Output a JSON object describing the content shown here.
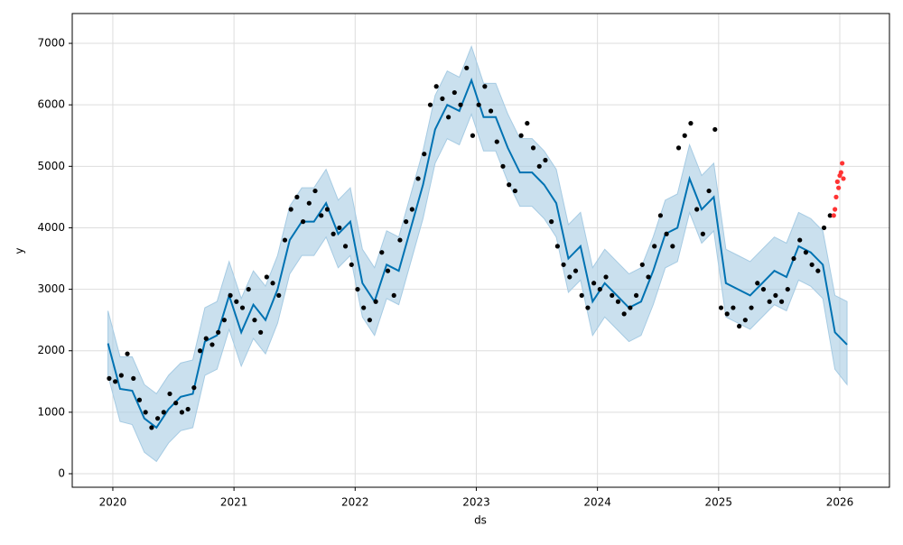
{
  "chart_data": {
    "type": "forecast",
    "x_label": "ds",
    "y_label": "y",
    "xlim": [
      2019.665,
      2026.41
    ],
    "ylim": [
      -220,
      7485
    ],
    "xticks": [
      2020,
      2021,
      2022,
      2023,
      2024,
      2025,
      2026
    ],
    "yticks": [
      0,
      1000,
      2000,
      3000,
      4000,
      5000,
      6000,
      7000
    ],
    "grid": true,
    "forecast": {
      "color": "#0072b2",
      "band_color": "#a6cbe3",
      "x": [
        2019.96,
        2020.06,
        2020.16,
        2020.26,
        2020.36,
        2020.46,
        2020.56,
        2020.66,
        2020.76,
        2020.86,
        2020.96,
        2021.06,
        2021.16,
        2021.26,
        2021.36,
        2021.46,
        2021.56,
        2021.66,
        2021.76,
        2021.86,
        2021.96,
        2022.06,
        2022.16,
        2022.26,
        2022.36,
        2022.46,
        2022.56,
        2022.66,
        2022.76,
        2022.86,
        2022.96,
        2023.06,
        2023.16,
        2023.26,
        2023.36,
        2023.46,
        2023.56,
        2023.66,
        2023.76,
        2023.86,
        2023.96,
        2024.06,
        2024.16,
        2024.26,
        2024.36,
        2024.46,
        2024.56,
        2024.66,
        2024.76,
        2024.86,
        2024.96,
        2025.06,
        2025.16,
        2025.26,
        2025.36,
        2025.46,
        2025.56,
        2025.66,
        2025.76,
        2025.86,
        2025.96,
        2026.06
      ],
      "values": [
        2120,
        1380,
        1350,
        900,
        750,
        1050,
        1250,
        1300,
        2150,
        2250,
        2900,
        2300,
        2750,
        2500,
        3000,
        3800,
        4100,
        4100,
        4400,
        3900,
        4100,
        3100,
        2800,
        3400,
        3300,
        4000,
        4700,
        5600,
        6000,
        5900,
        6400,
        5800,
        5800,
        5300,
        4900,
        4900,
        4700,
        4400,
        3500,
        3700,
        2800,
        3100,
        2900,
        2700,
        2800,
        3300,
        3900,
        4000,
        4800,
        4300,
        4500,
        3100,
        3000,
        2900,
        3100,
        3300,
        3200,
        3700,
        3600,
        3400,
        2300,
        2100
      ],
      "lower": [
        1600,
        850,
        800,
        350,
        200,
        500,
        700,
        750,
        1600,
        1700,
        2350,
        1750,
        2200,
        1950,
        2450,
        3250,
        3550,
        3550,
        3850,
        3350,
        3550,
        2550,
        2250,
        2850,
        2750,
        3450,
        4150,
        5050,
        5450,
        5350,
        5850,
        5250,
        5250,
        4750,
        4350,
        4350,
        4150,
        3850,
        2950,
        3150,
        2250,
        2550,
        2350,
        2150,
        2250,
        2750,
        3350,
        3450,
        4250,
        3750,
        3950,
        2550,
        2450,
        2350,
        2550,
        2750,
        2650,
        3150,
        3050,
        2850,
        1700,
        1450
      ],
      "upper": [
        2650,
        1900,
        1900,
        1450,
        1300,
        1600,
        1800,
        1850,
        2700,
        2800,
        3450,
        2850,
        3300,
        3050,
        3550,
        4350,
        4650,
        4650,
        4950,
        4450,
        4650,
        3650,
        3350,
        3950,
        3850,
        4550,
        5250,
        6150,
        6550,
        6450,
        6950,
        6350,
        6350,
        5850,
        5450,
        5450,
        5250,
        4950,
        4050,
        4250,
        3350,
        3650,
        3450,
        3250,
        3350,
        3850,
        4450,
        4550,
        5350,
        4850,
        5050,
        3650,
        3550,
        3450,
        3650,
        3850,
        3750,
        4250,
        4150,
        3950,
        2900,
        2800
      ]
    },
    "points": {
      "color": "#000000",
      "x": [
        2019.97,
        2020.02,
        2020.07,
        2020.12,
        2020.17,
        2020.22,
        2020.27,
        2020.32,
        2020.37,
        2020.42,
        2020.47,
        2020.52,
        2020.57,
        2020.62,
        2020.67,
        2020.72,
        2020.77,
        2020.82,
        2020.87,
        2020.92,
        2020.97,
        2021.02,
        2021.07,
        2021.12,
        2021.17,
        2021.22,
        2021.27,
        2021.32,
        2021.37,
        2021.42,
        2021.47,
        2021.52,
        2021.57,
        2021.62,
        2021.67,
        2021.72,
        2021.77,
        2021.82,
        2021.87,
        2021.92,
        2021.97,
        2022.02,
        2022.07,
        2022.12,
        2022.17,
        2022.22,
        2022.27,
        2022.32,
        2022.37,
        2022.42,
        2022.47,
        2022.52,
        2022.57,
        2022.62,
        2022.67,
        2022.72,
        2022.77,
        2022.82,
        2022.87,
        2022.92,
        2022.97,
        2023.02,
        2023.07,
        2023.12,
        2023.17,
        2023.22,
        2023.27,
        2023.32,
        2023.37,
        2023.42,
        2023.47,
        2023.52,
        2023.57,
        2023.62,
        2023.67,
        2023.72,
        2023.77,
        2023.82,
        2023.87,
        2023.92,
        2023.97,
        2024.02,
        2024.07,
        2024.12,
        2024.17,
        2024.22,
        2024.27,
        2024.32,
        2024.37,
        2024.42,
        2024.47,
        2024.52,
        2024.57,
        2024.62,
        2024.67,
        2024.72,
        2024.77,
        2024.82,
        2024.87,
        2024.92,
        2024.97,
        2025.02,
        2025.07,
        2025.12,
        2025.17,
        2025.22,
        2025.27,
        2025.32,
        2025.37,
        2025.42,
        2025.47,
        2025.52,
        2025.57,
        2025.62,
        2025.67,
        2025.72,
        2025.77,
        2025.82,
        2025.87,
        2025.92
      ],
      "values": [
        1550,
        1500,
        1600,
        1950,
        1550,
        1200,
        1000,
        750,
        900,
        1000,
        1300,
        1150,
        1000,
        1050,
        1400,
        2000,
        2200,
        2100,
        2300,
        2500,
        2900,
        2800,
        2700,
        3000,
        2500,
        2300,
        3200,
        3100,
        2900,
        3800,
        4300,
        4500,
        4100,
        4400,
        4600,
        4200,
        4300,
        3900,
        4000,
        3700,
        3400,
        3000,
        2700,
        2500,
        2800,
        3600,
        3300,
        2900,
        3800,
        4100,
        4300,
        4800,
        5200,
        6000,
        6300,
        6100,
        5800,
        6200,
        6000,
        6600,
        5500,
        6000,
        6300,
        5900,
        5400,
        5000,
        4700,
        4600,
        5500,
        5700,
        5300,
        5000,
        5100,
        4100,
        3700,
        3400,
        3200,
        3300,
        2900,
        2700,
        3100,
        3000,
        3200,
        2900,
        2800,
        2600,
        2700,
        2900,
        3400,
        3200,
        3700,
        4200,
        3900,
        3700,
        5300,
        5500,
        5700,
        4300,
        3900,
        4600,
        5600,
        2700,
        2600,
        2700,
        2400,
        2500,
        2700,
        3100,
        3000,
        2800,
        2900,
        2800,
        3000,
        3500,
        3800,
        3600,
        3400,
        3300,
        4000,
        4200
      ]
    },
    "future_points": {
      "color": "#ff3333",
      "x": [
        2025.95,
        2025.96,
        2025.97,
        2025.98,
        2025.99,
        2026.0,
        2026.01,
        2026.02,
        2026.03
      ],
      "values": [
        4200,
        4300,
        4500,
        4750,
        4650,
        4850,
        4900,
        5050,
        4800
      ]
    }
  }
}
